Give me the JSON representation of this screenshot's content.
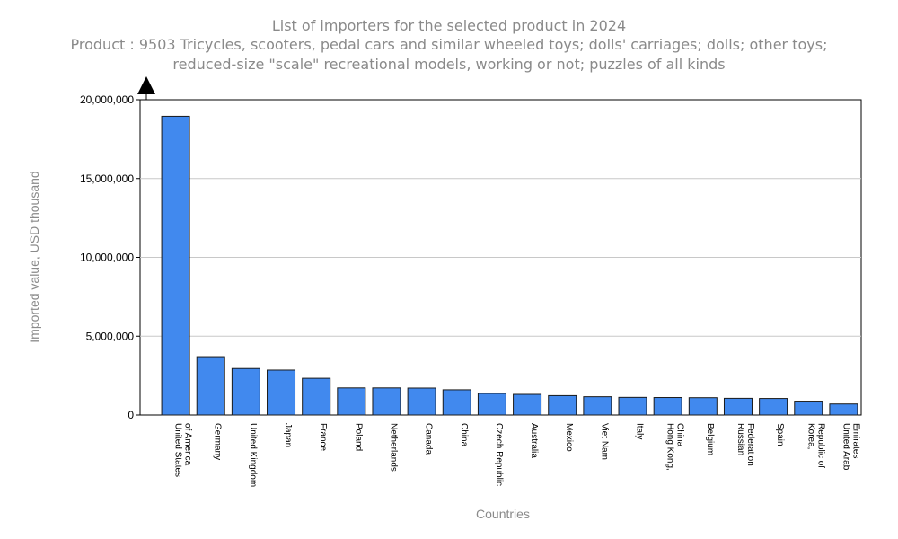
{
  "chart_data": {
    "type": "bar",
    "title_line1": "List of importers for the selected product in 2024",
    "title_line2": "Product : 9503 Tricycles, scooters, pedal cars and similar wheeled toys; dolls' carriages; dolls; other toys; reduced-size \"scale\" recreational models, working or not; puzzles of all kinds",
    "xlabel": "Countries",
    "ylabel": "Imported value, USD thousand",
    "ylim": [
      0,
      20000000
    ],
    "yticks": [
      0,
      5000000,
      10000000,
      15000000,
      20000000
    ],
    "ytick_labels": [
      "0",
      "5,000,000",
      "10,000,000",
      "15,000,000",
      "20,000,000"
    ],
    "grid": true,
    "bar_color": "#4189ee",
    "categories": [
      [
        "United States",
        "of America"
      ],
      [
        "Germany"
      ],
      [
        "United Kingdom"
      ],
      [
        "Japan"
      ],
      [
        "France"
      ],
      [
        "Poland"
      ],
      [
        "Netherlands"
      ],
      [
        "Canada"
      ],
      [
        "China"
      ],
      [
        "Czech Republic"
      ],
      [
        "Australia"
      ],
      [
        "Mexico"
      ],
      [
        "Viet Nam"
      ],
      [
        "Italy"
      ],
      [
        "Hong Kong,",
        "China"
      ],
      [
        "Belgium"
      ],
      [
        "Russian",
        "Federation"
      ],
      [
        "Spain"
      ],
      [
        "Korea,",
        "Republic of"
      ],
      [
        "United Arab",
        "Emirates"
      ]
    ],
    "values": [
      18950000,
      3700000,
      2950000,
      2850000,
      2330000,
      1720000,
      1720000,
      1710000,
      1600000,
      1370000,
      1310000,
      1230000,
      1160000,
      1120000,
      1110000,
      1100000,
      1060000,
      1050000,
      880000,
      700000
    ]
  }
}
